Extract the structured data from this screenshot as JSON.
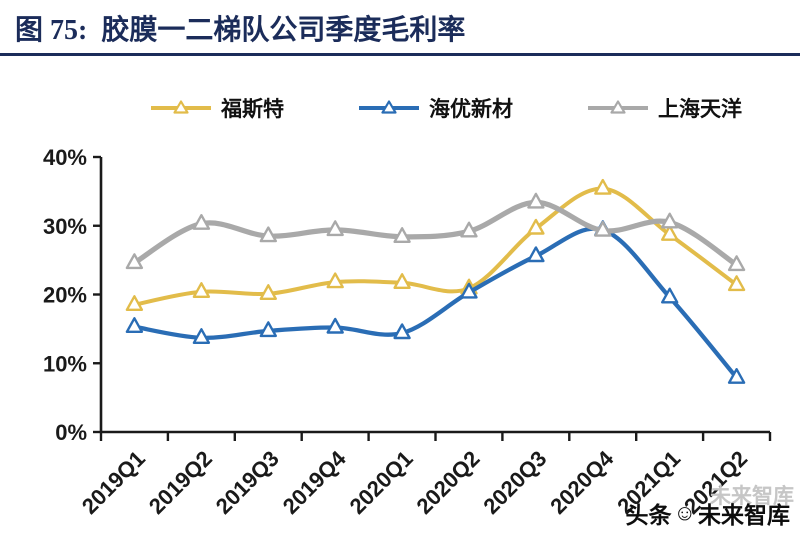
{
  "figure": {
    "number_label": "图 75:",
    "title": "胶膜一二梯队公司季度毛利率"
  },
  "watermark": {
    "echo": "未来智库",
    "prefix": "头条",
    "logo_icon": "☺",
    "suffix": "未来智库"
  },
  "chart_data": {
    "type": "line",
    "title": "胶膜一二梯队公司季度毛利率",
    "categories": [
      "2019Q1",
      "2019Q2",
      "2019Q3",
      "2019Q4",
      "2020Q1",
      "2020Q2",
      "2020Q3",
      "2020Q4",
      "2021Q1",
      "2021Q2"
    ],
    "series": [
      {
        "name": "福斯特",
        "color": "#E2BC4A",
        "values": [
          18.5,
          20.4,
          20.1,
          21.8,
          21.7,
          20.9,
          29.6,
          35.4,
          28.7,
          21.4
        ]
      },
      {
        "name": "海优新材",
        "color": "#2A6DB5",
        "values": [
          15.3,
          13.7,
          14.7,
          15.2,
          14.4,
          20.3,
          25.6,
          29.4,
          19.6,
          7.9
        ]
      },
      {
        "name": "上海天洋",
        "color": "#A9A9A9",
        "values": [
          24.6,
          30.3,
          28.5,
          29.4,
          28.4,
          29.2,
          33.4,
          29.3,
          30.5,
          24.3
        ]
      }
    ],
    "yticks": [
      "0%",
      "10%",
      "20%",
      "30%",
      "40%"
    ],
    "ylim": [
      0,
      40
    ],
    "xlabel": "",
    "ylabel": "",
    "grid": false,
    "legend_position": "top",
    "marker": "triangle-open"
  }
}
